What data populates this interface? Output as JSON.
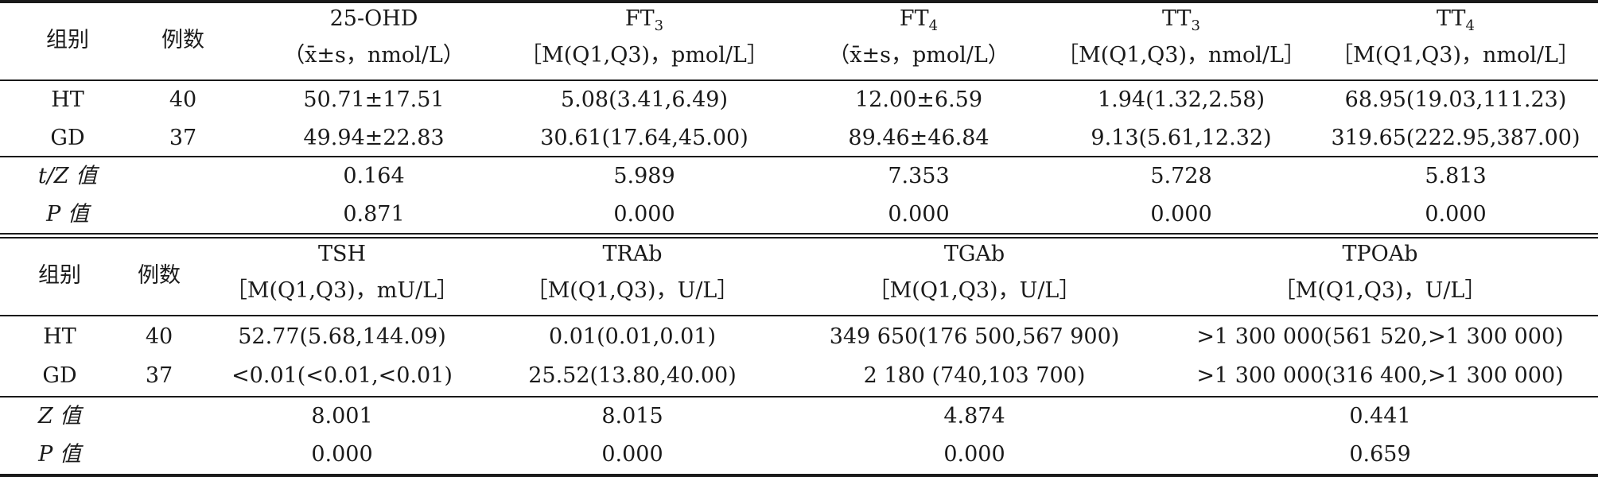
{
  "table1": {
    "header": {
      "group": "组别",
      "cases": "例数",
      "cols": [
        {
          "name": "25-OHD",
          "unit": "（x̄±s，nmol/L）"
        },
        {
          "name_base": "FT",
          "name_sub": "3",
          "unit": "［M(Q1,Q3)，pmol/L］"
        },
        {
          "name_base": "FT",
          "name_sub": "4",
          "unit": "（x̄±s，pmol/L）"
        },
        {
          "name_base": "TT",
          "name_sub": "3",
          "unit": "［M(Q1,Q3)，nmol/L］"
        },
        {
          "name_base": "TT",
          "name_sub": "4",
          "unit": "［M(Q1,Q3)，nmol/L］"
        }
      ]
    },
    "rows": [
      {
        "group": "HT",
        "n": "40",
        "values": [
          "50.71±17.51",
          "5.08(3.41,6.49)",
          "12.00±6.59",
          "1.94(1.32,2.58)",
          "68.95(19.03,111.23)"
        ]
      },
      {
        "group": "GD",
        "n": "37",
        "values": [
          "49.94±22.83",
          "30.61(17.64,45.00)",
          "89.46±46.84",
          "9.13(5.61,12.32)",
          "319.65(222.95,387.00)"
        ]
      }
    ],
    "stats": [
      {
        "label": "t/Z 值",
        "values": [
          "0.164",
          "5.989",
          "7.353",
          "5.728",
          "5.813"
        ]
      },
      {
        "label": "P 值",
        "values": [
          "0.871",
          "0.000",
          "0.000",
          "0.000",
          "0.000"
        ]
      }
    ]
  },
  "table2": {
    "header": {
      "group": "组别",
      "cases": "例数",
      "cols": [
        {
          "name": "TSH",
          "unit": "［M(Q1,Q3)，mU/L］"
        },
        {
          "name": "TRAb",
          "unit": "［M(Q1,Q3)，U/L］"
        },
        {
          "name": "TGAb",
          "unit": "［M(Q1,Q3)，U/L］"
        },
        {
          "name": "TPOAb",
          "unit": "［M(Q1,Q3)，U/L］"
        }
      ]
    },
    "rows": [
      {
        "group": "HT",
        "n": "40",
        "values": [
          "52.77(5.68,144.09)",
          "0.01(0.01,0.01)",
          "349 650(176 500,567 900)",
          ">1 300 000(561 520,>1 300 000)"
        ]
      },
      {
        "group": "GD",
        "n": "37",
        "values": [
          "<0.01(<0.01,<0.01)",
          "25.52(13.80,40.00)",
          "2 180 (740,103 700)",
          ">1 300 000(316 400,>1 300 000)"
        ]
      }
    ],
    "stats": [
      {
        "label": "Z 值",
        "values": [
          "8.001",
          "8.015",
          "4.874",
          "0.441"
        ]
      },
      {
        "label": "P 值",
        "values": [
          "0.000",
          "0.000",
          "0.000",
          "0.659"
        ]
      }
    ]
  }
}
